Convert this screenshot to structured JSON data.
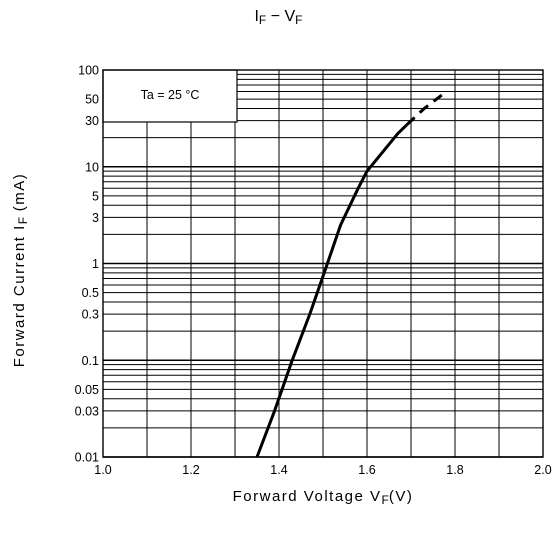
{
  "chart_data": {
    "type": "line",
    "title_main": "I",
    "title_sub1": "F",
    "title_dash": " − V",
    "title_sub2": "F",
    "xlabel_main": "Forward Voltage V",
    "xlabel_sub": "F",
    "xlabel_unit": "(V)",
    "ylabel_main": "Forward Current I",
    "ylabel_sub": "F",
    "ylabel_unit": " (mA)",
    "annotation": "Ta = 25 °C",
    "xlim": [
      1.0,
      2.0
    ],
    "ylim": [
      0.01,
      100
    ],
    "yscale": "log",
    "grid": true,
    "x_ticks": [
      1.0,
      1.2,
      1.4,
      1.6,
      1.8,
      2.0
    ],
    "x_tick_labels": [
      "1.0",
      "1.2",
      "1.4",
      "1.6",
      "1.8",
      "2.0"
    ],
    "y_tick_values": [
      0.01,
      0.03,
      0.05,
      0.1,
      0.3,
      0.5,
      1,
      3,
      5,
      10,
      30,
      50,
      100
    ],
    "y_tick_labels": [
      "0.01",
      "0.03",
      "0.05",
      "0.1",
      "0.3",
      "0.5",
      "1",
      "3",
      "5",
      "10",
      "30",
      "50",
      "100"
    ],
    "series": [
      {
        "style": "solid",
        "x": [
          1.35,
          1.39,
          1.43,
          1.47,
          1.51,
          1.54,
          1.58,
          1.6,
          1.64,
          1.67,
          1.69
        ],
        "y": [
          0.01,
          0.03,
          0.1,
          0.3,
          1.0,
          2.5,
          6.0,
          9.0,
          15,
          22,
          27
        ]
      },
      {
        "style": "dashed",
        "x": [
          1.69,
          1.73,
          1.77
        ],
        "y": [
          27,
          40,
          55
        ]
      }
    ]
  }
}
